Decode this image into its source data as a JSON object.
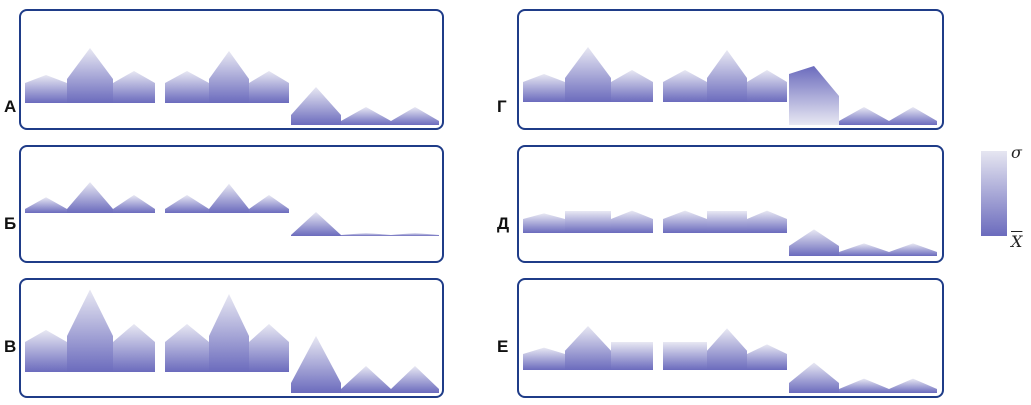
{
  "panels": [
    {
      "label": "А",
      "mode": "full"
    },
    {
      "label": "Б",
      "mode": "flat"
    },
    {
      "label": "В",
      "mode": "tall"
    },
    {
      "label": "Г",
      "mode": "deep"
    },
    {
      "label": "Д",
      "mode": "plateau"
    },
    {
      "label": "Е",
      "mode": "smooth"
    }
  ],
  "legend": {
    "top_symbol": "σ",
    "bottom_symbol": "X",
    "gradient": [
      "#e6e6f1",
      "#6b6bbd"
    ]
  },
  "colors": {
    "frame": "#1f3c88",
    "dark": "#6b6bbd",
    "light": "#ececf5"
  }
}
